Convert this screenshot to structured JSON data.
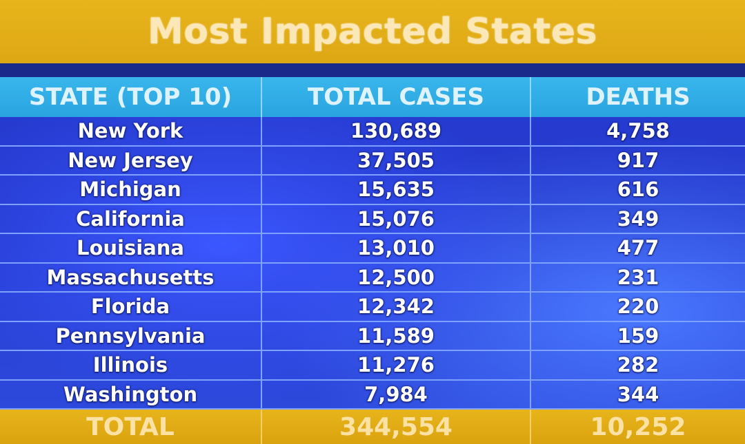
{
  "title": "Most Impacted States",
  "columns": [
    "STATE (TOP 10)",
    "TOTAL CASES",
    "DEATHS"
  ],
  "rows": [
    {
      "state": "New York",
      "cases": "130,689",
      "deaths": "4,758"
    },
    {
      "state": "New Jersey",
      "cases": "37,505",
      "deaths": "917"
    },
    {
      "state": "Michigan",
      "cases": "15,635",
      "deaths": "616"
    },
    {
      "state": "California",
      "cases": "15,076",
      "deaths": "349"
    },
    {
      "state": "Louisiana",
      "cases": "13,010",
      "deaths": "477"
    },
    {
      "state": "Massachusetts",
      "cases": "12,500",
      "deaths": "231"
    },
    {
      "state": "Florida",
      "cases": "12,342",
      "deaths": "220"
    },
    {
      "state": "Pennsylvania",
      "cases": "11,589",
      "deaths": "159"
    },
    {
      "state": "Illinois",
      "cases": "11,276",
      "deaths": "282"
    },
    {
      "state": "Washington",
      "cases": "7,984",
      "deaths": "344"
    }
  ],
  "total": {
    "label": "TOTAL",
    "cases": "344,554",
    "deaths": "10,252"
  },
  "colors": {
    "title_bar": "#e9b51c",
    "header_bar": "#39b6ec",
    "table_body": "#2a3fd8",
    "total_bar": "#e8b41b"
  }
}
